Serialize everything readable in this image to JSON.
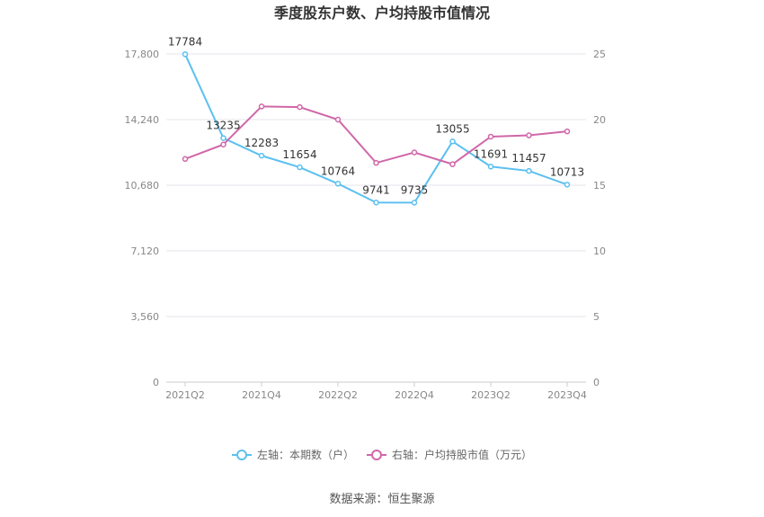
{
  "chart_data": {
    "type": "line",
    "title": "季度股东户数、户均持股市值情况",
    "categories": [
      "2021Q2",
      "2021Q3",
      "2021Q4",
      "2022Q1",
      "2022Q2",
      "2022Q3",
      "2022Q4",
      "2023Q1",
      "2023Q2",
      "2023Q3",
      "2023Q4"
    ],
    "x_tick_labels": [
      "2021Q2",
      "2021Q4",
      "2022Q2",
      "2022Q4",
      "2023Q2",
      "2023Q4"
    ],
    "y_left": {
      "ticks": [
        "0",
        "3,560",
        "7,120",
        "10,680",
        "14,240",
        "17,800"
      ],
      "min": 0,
      "max": 17800
    },
    "y_right": {
      "ticks": [
        "0",
        "5",
        "10",
        "15",
        "20",
        "25"
      ],
      "min": 0,
      "max": 25
    },
    "grid": "horizontal",
    "legend_position": "bottom",
    "series": [
      {
        "name": "左轴：本期数（户）",
        "axis": "left",
        "color": "#5bc0f0",
        "values": [
          17784,
          13235,
          12283,
          11654,
          10764,
          9741,
          9735,
          13055,
          11691,
          11457,
          10713
        ],
        "labels": [
          "17784",
          "13235",
          "12283",
          "11654",
          "10764",
          "9741",
          "9735",
          "13055",
          "11691",
          "11457",
          "10713"
        ]
      },
      {
        "name": "右轴：户均持股市值（万元）",
        "axis": "right",
        "color": "#d067a8",
        "values": [
          17.0,
          18.1,
          21.0,
          20.95,
          20.0,
          16.7,
          17.5,
          16.6,
          18.7,
          18.8,
          19.1
        ]
      }
    ],
    "source": "数据来源：恒生聚源"
  }
}
